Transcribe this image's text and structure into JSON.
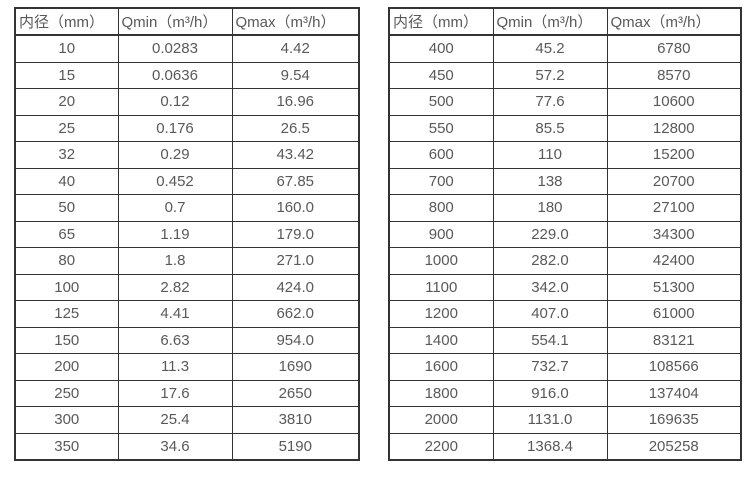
{
  "style": {
    "background_color": "#ffffff",
    "text_color": "#595959",
    "border_color": "#333333"
  },
  "tables": [
    {
      "title": "small-diameter-flow-table",
      "headers": [
        "内径（mm）",
        "Qmin（m³/h）",
        "Qmax（m³/h）"
      ],
      "rows": [
        [
          "10",
          "0.0283",
          "4.42"
        ],
        [
          "15",
          "0.0636",
          "9.54"
        ],
        [
          "20",
          "0.12",
          "16.96"
        ],
        [
          "25",
          "0.176",
          "26.5"
        ],
        [
          "32",
          "0.29",
          "43.42"
        ],
        [
          "40",
          "0.452",
          "67.85"
        ],
        [
          "50",
          "0.7",
          "160.0"
        ],
        [
          "65",
          "1.19",
          "179.0"
        ],
        [
          "80",
          "1.8",
          "271.0"
        ],
        [
          "100",
          "2.82",
          "424.0"
        ],
        [
          "125",
          "4.41",
          "662.0"
        ],
        [
          "150",
          "6.63",
          "954.0"
        ],
        [
          "200",
          "11.3",
          "1690"
        ],
        [
          "250",
          "17.6",
          "2650"
        ],
        [
          "300",
          "25.4",
          "3810"
        ],
        [
          "350",
          "34.6",
          "5190"
        ]
      ]
    },
    {
      "title": "large-diameter-flow-table",
      "headers": [
        "内径（mm）",
        "Qmin（m³/h）",
        "Qmax（m³/h）"
      ],
      "rows": [
        [
          "400",
          "45.2",
          "6780"
        ],
        [
          "450",
          "57.2",
          "8570"
        ],
        [
          "500",
          "77.6",
          "10600"
        ],
        [
          "550",
          "85.5",
          "12800"
        ],
        [
          "600",
          "110",
          "15200"
        ],
        [
          "700",
          "138",
          "20700"
        ],
        [
          "800",
          "180",
          "27100"
        ],
        [
          "900",
          "229.0",
          "34300"
        ],
        [
          "1000",
          "282.0",
          "42400"
        ],
        [
          "1100",
          "342.0",
          "51300"
        ],
        [
          "1200",
          "407.0",
          "61000"
        ],
        [
          "1400",
          "554.1",
          "83121"
        ],
        [
          "1600",
          "732.7",
          "108566"
        ],
        [
          "1800",
          "916.0",
          "137404"
        ],
        [
          "2000",
          "1131.0",
          "169635"
        ],
        [
          "2200",
          "1368.4",
          "205258"
        ]
      ]
    }
  ]
}
